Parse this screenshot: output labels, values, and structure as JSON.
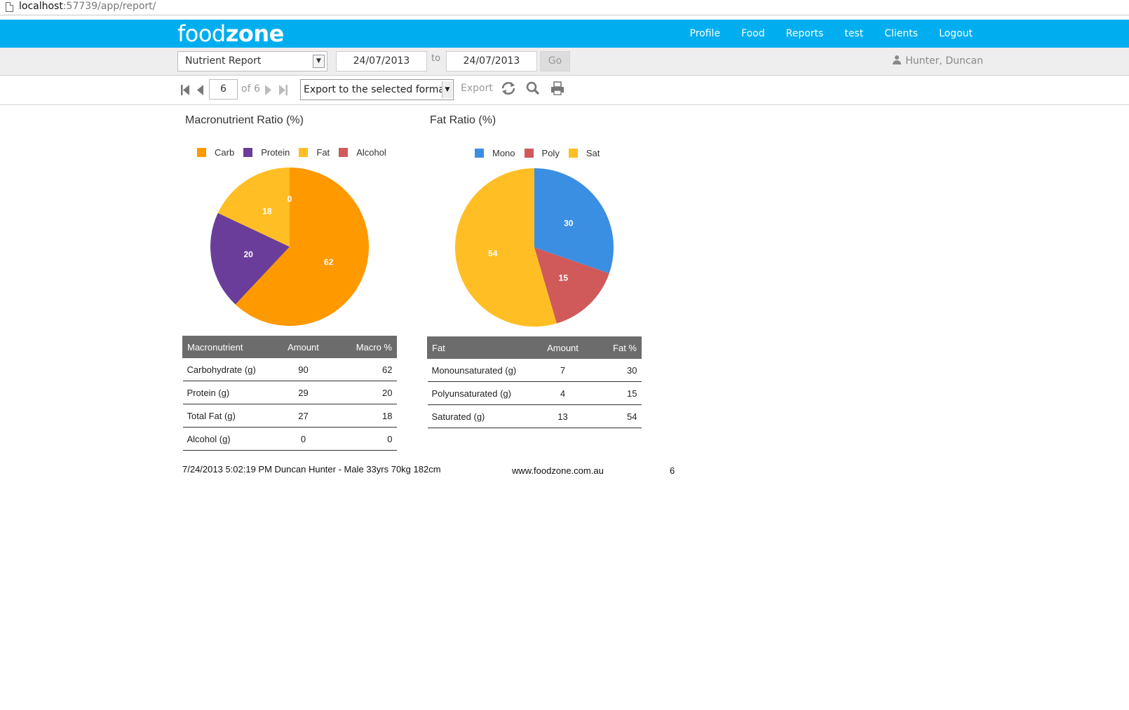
{
  "browser": {
    "url_host": "localhost",
    "url_rest": ":57739/app/report/"
  },
  "nav": {
    "logo_light": "food",
    "logo_bold": "zone",
    "links": [
      "Profile",
      "Food",
      "Reports",
      "test",
      "Clients",
      "Logout"
    ]
  },
  "filter": {
    "report_select": "Nutrient Report",
    "date_from": "24/07/2013",
    "to_label": "to",
    "date_to": "24/07/2013",
    "go_label": "Go",
    "user": "Hunter, Duncan"
  },
  "toolbar": {
    "page_number": "6",
    "of_label": "of 6",
    "export_select": "Export to the selected format",
    "export_label": "Export"
  },
  "colors": {
    "nav_bg": "#00aeef",
    "carb": "#ff9900",
    "protein": "#6a3d9a",
    "fat": "#ffbf24",
    "alcohol": "#d05a5a",
    "mono": "#3b8fe3",
    "poly": "#d05a5a",
    "sat": "#ffbf24"
  },
  "chart_data": [
    {
      "type": "pie",
      "title": "Macronutrient Ratio (%)",
      "labels": [
        "Carb",
        "Protein",
        "Fat",
        "Alcohol"
      ],
      "values": [
        62,
        20,
        18,
        0
      ],
      "colors": [
        "#ff9900",
        "#6a3d9a",
        "#ffbf24",
        "#d05a5a"
      ],
      "legend": "top"
    },
    {
      "type": "pie",
      "title": "Fat Ratio (%)",
      "labels": [
        "Mono",
        "Poly",
        "Sat"
      ],
      "values": [
        30,
        15,
        54
      ],
      "colors": [
        "#3b8fe3",
        "#d05a5a",
        "#ffbf24"
      ],
      "legend": "top"
    }
  ],
  "macro_table": {
    "headers": [
      "Macronutrient",
      "Amount",
      "Macro %"
    ],
    "rows": [
      [
        "Carbohydrate  (g)",
        "90",
        "62"
      ],
      [
        "Protein  (g)",
        "29",
        "20"
      ],
      [
        "Total Fat  (g)",
        "27",
        "18"
      ],
      [
        "Alcohol  (g)",
        "0",
        "0"
      ]
    ]
  },
  "fat_table": {
    "headers": [
      "Fat",
      "Amount",
      "Fat %"
    ],
    "rows": [
      [
        "Monounsaturated  (g)",
        "7",
        "30"
      ],
      [
        "Polyunsaturated  (g)",
        "4",
        "15"
      ],
      [
        "Saturated  (g)",
        "13",
        "54"
      ]
    ]
  },
  "footer": {
    "generated": "7/24/2013 5:02:19 PM Duncan Hunter - Male 33yrs 70kg 182cm",
    "website": "www.foodzone.com.au",
    "page": "6"
  }
}
